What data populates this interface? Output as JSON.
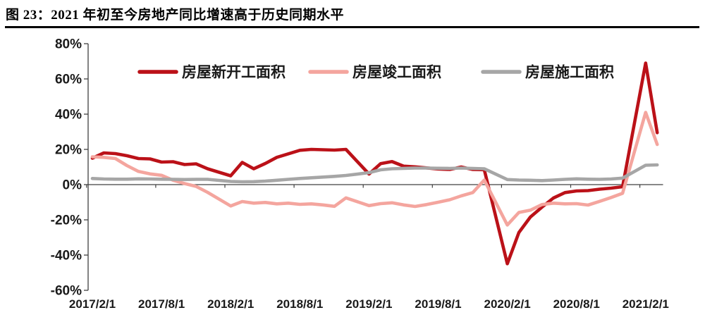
{
  "figure": {
    "title": "图 23：2021 年初至今房地产同比增速高于历史同期水平"
  },
  "chart_data": {
    "type": "line",
    "title": "图 23：2021 年初至今房地产同比增速高于历史同期水平",
    "x_unit": "month (cumulative YoY %, January skipped)",
    "ylim": [
      -60,
      80
    ],
    "y_tick_step": 20,
    "grid": false,
    "legend_position": "top",
    "axis_color": "#404040",
    "text_color": "#1a1a1a",
    "y_tick_labels": [
      "80%",
      "60%",
      "40%",
      "20%",
      "0%",
      "-20%",
      "-40%",
      "-60%"
    ],
    "x_tick_labels": [
      "2017/2/1",
      "2017/8/1",
      "2018/2/1",
      "2018/8/1",
      "2019/2/1",
      "2019/8/1",
      "2020/2/1",
      "2020/8/1",
      "2021/2/1"
    ],
    "months": [
      "2017/2",
      "2017/3",
      "2017/4",
      "2017/5",
      "2017/6",
      "2017/7",
      "2017/8",
      "2017/9",
      "2017/10",
      "2017/11",
      "2017/12",
      "2018/2",
      "2018/3",
      "2018/4",
      "2018/5",
      "2018/6",
      "2018/7",
      "2018/8",
      "2018/9",
      "2018/10",
      "2018/11",
      "2018/12",
      "2019/2",
      "2019/3",
      "2019/4",
      "2019/5",
      "2019/6",
      "2019/7",
      "2019/8",
      "2019/9",
      "2019/10",
      "2019/11",
      "2019/12",
      "2020/2",
      "2020/3",
      "2020/4",
      "2020/5",
      "2020/6",
      "2020/7",
      "2020/8",
      "2020/9",
      "2020/10",
      "2020/11",
      "2020/12",
      "2021/2",
      "2021/3"
    ],
    "series": [
      {
        "name": "房屋新开工面积",
        "color": "#bb1118",
        "values": [
          15.0,
          18.0,
          17.6,
          16.4,
          14.8,
          14.6,
          12.8,
          13.0,
          11.4,
          11.8,
          9.0,
          5.0,
          12.6,
          9.0,
          12.0,
          15.5,
          17.5,
          19.5,
          20.0,
          19.8,
          19.6,
          20.0,
          6.0,
          11.9,
          13.1,
          10.5,
          10.1,
          9.5,
          8.9,
          8.6,
          10.0,
          8.6,
          8.5,
          -44.9,
          -27.2,
          -18.4,
          -12.8,
          -7.6,
          -4.5,
          -3.6,
          -3.4,
          -2.6,
          -2.0,
          -1.2,
          69.0,
          29.5
        ]
      },
      {
        "name": "房屋竣工面积",
        "color": "#f4a59e",
        "values": [
          15.8,
          15.5,
          14.8,
          10.8,
          7.5,
          6.1,
          5.3,
          2.5,
          0.6,
          -1.0,
          -4.4,
          -12.1,
          -9.6,
          -10.5,
          -10.1,
          -10.9,
          -10.5,
          -11.2,
          -10.9,
          -11.5,
          -12.3,
          -7.5,
          -11.9,
          -10.8,
          -10.3,
          -11.5,
          -12.4,
          -11.3,
          -10.0,
          -8.6,
          -6.4,
          -4.5,
          2.6,
          -22.9,
          -15.8,
          -14.5,
          -11.3,
          -10.5,
          -10.9,
          -10.8,
          -11.6,
          -9.5,
          -7.3,
          -4.9,
          41.0,
          22.8
        ]
      },
      {
        "name": "房屋施工面积",
        "color": "#a6a6a6",
        "values": [
          3.5,
          3.2,
          3.1,
          3.1,
          3.3,
          3.2,
          3.1,
          3.0,
          2.9,
          3.0,
          3.0,
          1.8,
          1.6,
          1.7,
          2.0,
          2.5,
          3.0,
          3.5,
          3.9,
          4.3,
          4.7,
          5.2,
          6.8,
          8.4,
          9.0,
          9.2,
          9.4,
          9.4,
          9.3,
          9.2,
          9.4,
          9.2,
          9.0,
          2.9,
          2.6,
          2.5,
          2.3,
          2.6,
          3.0,
          3.3,
          3.1,
          3.0,
          3.2,
          3.7,
          11.0,
          11.2
        ]
      }
    ]
  }
}
